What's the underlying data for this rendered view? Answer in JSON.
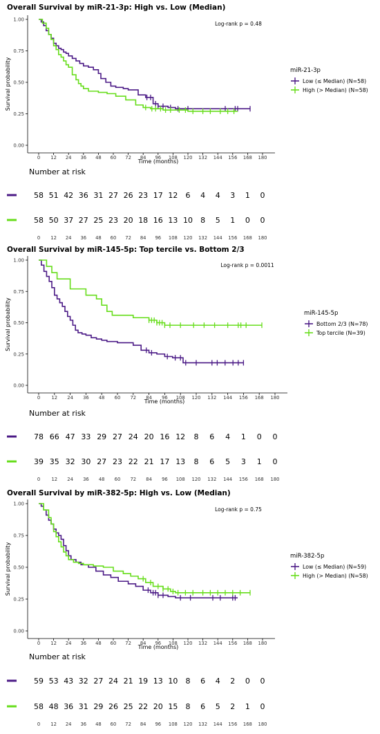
{
  "chart_data": [
    {
      "type": "line",
      "title": "Overall Survival by miR-21-3p: High vs. Low (Median)",
      "xlabel": "Time (months)",
      "ylabel": "Survival probability",
      "xlim": [
        0,
        180
      ],
      "ylim": [
        0,
        1
      ],
      "x_ticks": [
        "0",
        "12",
        "24",
        "36",
        "48",
        "60",
        "72",
        "84",
        "96",
        "108",
        "120",
        "132",
        "144",
        "156",
        "168",
        "180"
      ],
      "y_ticks": [
        "0.00",
        "0.25",
        "0.50",
        "0.75",
        "1.00"
      ],
      "annotation": "Log-rank p = 0.48",
      "legend_title": "miR-21-3p",
      "legend_position": "right",
      "series": [
        {
          "name": "Low (≤ Median) (N=58)",
          "color": "#4b1a86",
          "x": [
            0,
            2,
            4,
            6,
            8,
            10,
            12,
            14,
            16,
            18,
            20,
            22,
            24,
            27,
            30,
            33,
            36,
            40,
            44,
            48,
            50,
            54,
            58,
            62,
            68,
            72,
            80,
            86,
            92,
            96,
            104,
            110,
            170
          ],
          "y": [
            1.0,
            0.98,
            0.95,
            0.91,
            0.88,
            0.85,
            0.81,
            0.79,
            0.77,
            0.76,
            0.74,
            0.73,
            0.71,
            0.69,
            0.67,
            0.65,
            0.63,
            0.62,
            0.6,
            0.57,
            0.53,
            0.5,
            0.47,
            0.46,
            0.45,
            0.44,
            0.4,
            0.38,
            0.33,
            0.31,
            0.3,
            0.29,
            0.29
          ],
          "censors_x": [
            87,
            90,
            94,
            96,
            100,
            106,
            112,
            120,
            150,
            158,
            160,
            170
          ]
        },
        {
          "name": "High (> Median) (N=58)",
          "color": "#66dd1a",
          "x": [
            0,
            3,
            6,
            8,
            10,
            12,
            14,
            16,
            18,
            20,
            22,
            24,
            27,
            30,
            32,
            34,
            36,
            40,
            48,
            55,
            62,
            70,
            78,
            84,
            90,
            100,
            110,
            120,
            160
          ],
          "y": [
            1.0,
            0.97,
            0.93,
            0.88,
            0.84,
            0.79,
            0.76,
            0.72,
            0.7,
            0.67,
            0.64,
            0.62,
            0.56,
            0.52,
            0.49,
            0.47,
            0.45,
            0.43,
            0.42,
            0.41,
            0.39,
            0.36,
            0.32,
            0.3,
            0.29,
            0.28,
            0.28,
            0.27,
            0.27
          ],
          "censors_x": [
            86,
            91,
            94,
            98,
            102,
            106,
            113,
            118,
            124,
            132,
            138,
            146,
            152,
            157
          ]
        }
      ],
      "risk_table": {
        "title": "Number at risk",
        "times": [
          "0",
          "12",
          "24",
          "36",
          "48",
          "60",
          "72",
          "84",
          "96",
          "108",
          "120",
          "132",
          "144",
          "156",
          "168",
          "180"
        ],
        "rows": [
          {
            "color": "#4b1a86",
            "values": [
              "58",
              "51",
              "42",
              "36",
              "31",
              "27",
              "26",
              "23",
              "17",
              "12",
              "6",
              "4",
              "4",
              "3",
              "1",
              "0"
            ]
          },
          {
            "color": "#66dd1a",
            "values": [
              "58",
              "50",
              "37",
              "27",
              "25",
              "23",
              "20",
              "18",
              "16",
              "13",
              "10",
              "8",
              "5",
              "1",
              "0",
              "0"
            ]
          }
        ]
      }
    },
    {
      "type": "line",
      "title": "Overall Survival by miR-145-5p: Top tercile vs. Bottom 2/3",
      "xlabel": "Time (months)",
      "ylabel": "Survival probability",
      "xlim": [
        0,
        180
      ],
      "ylim": [
        0,
        1
      ],
      "x_ticks": [
        "0",
        "12",
        "24",
        "36",
        "48",
        "60",
        "72",
        "84",
        "96",
        "108",
        "120",
        "132",
        "144",
        "156",
        "168",
        "180"
      ],
      "y_ticks": [
        "0.00",
        "0.25",
        "0.50",
        "0.75",
        "1.00"
      ],
      "annotation": "Log-rank p = 0.0011",
      "legend_title": "miR-145-5p",
      "legend_position": "right",
      "series": [
        {
          "name": "Bottom 2/3 (N=78)",
          "color": "#4b1a86",
          "x": [
            0,
            2,
            4,
            6,
            8,
            10,
            12,
            14,
            16,
            18,
            20,
            22,
            24,
            26,
            28,
            30,
            33,
            36,
            40,
            44,
            48,
            52,
            56,
            60,
            66,
            72,
            78,
            84,
            90,
            96,
            102,
            110,
            156
          ],
          "y": [
            1.0,
            0.96,
            0.91,
            0.87,
            0.83,
            0.78,
            0.72,
            0.69,
            0.66,
            0.63,
            0.59,
            0.55,
            0.52,
            0.48,
            0.44,
            0.42,
            0.41,
            0.4,
            0.38,
            0.37,
            0.36,
            0.35,
            0.35,
            0.34,
            0.34,
            0.32,
            0.28,
            0.26,
            0.25,
            0.23,
            0.22,
            0.18,
            0.18
          ],
          "censors_x": [
            82,
            86,
            98,
            104,
            108,
            112,
            120,
            132,
            136,
            142,
            148,
            152,
            156
          ]
        },
        {
          "name": "Top tercile (N=39)",
          "color": "#66dd1a",
          "x": [
            0,
            6,
            10,
            14,
            24,
            36,
            44,
            48,
            52,
            56,
            62,
            72,
            84,
            90,
            96,
            170
          ],
          "y": [
            1.0,
            0.95,
            0.9,
            0.85,
            0.77,
            0.72,
            0.69,
            0.64,
            0.59,
            0.56,
            0.56,
            0.54,
            0.52,
            0.5,
            0.48,
            0.48
          ],
          "censors_x": [
            84,
            86,
            88,
            90,
            92,
            94,
            96,
            100,
            108,
            118,
            126,
            134,
            144,
            152,
            154,
            158,
            170
          ]
        }
      ],
      "risk_table": {
        "title": "Number at risk",
        "times": [
          "0",
          "12",
          "24",
          "36",
          "48",
          "60",
          "72",
          "84",
          "96",
          "108",
          "120",
          "132",
          "144",
          "156",
          "168",
          "180"
        ],
        "rows": [
          {
            "color": "#4b1a86",
            "values": [
              "78",
              "66",
              "47",
              "33",
              "29",
              "27",
              "24",
              "20",
              "16",
              "12",
              "8",
              "6",
              "4",
              "1",
              "0",
              "0"
            ]
          },
          {
            "color": "#66dd1a",
            "values": [
              "39",
              "35",
              "32",
              "30",
              "27",
              "23",
              "22",
              "21",
              "17",
              "13",
              "8",
              "6",
              "5",
              "3",
              "1",
              "0"
            ]
          }
        ]
      }
    },
    {
      "type": "line",
      "title": "Overall Survival by miR-382-5p: High vs. Low (Median)",
      "xlabel": "Time (months)",
      "ylabel": "Survival probability",
      "xlim": [
        0,
        180
      ],
      "ylim": [
        0,
        1
      ],
      "x_ticks": [
        "0",
        "12",
        "24",
        "36",
        "48",
        "60",
        "72",
        "84",
        "96",
        "108",
        "120",
        "132",
        "144",
        "156",
        "168",
        "180"
      ],
      "y_ticks": [
        "0.00",
        "0.25",
        "0.50",
        "0.75",
        "1.00"
      ],
      "annotation": "Log-rank p = 0.75",
      "legend_title": "miR-382-5p",
      "legend_position": "right",
      "series": [
        {
          "name": "Low (≤ Median) (N=59)",
          "color": "#4b1a86",
          "x": [
            0,
            2,
            4,
            6,
            8,
            10,
            12,
            14,
            16,
            18,
            20,
            22,
            24,
            26,
            30,
            34,
            40,
            46,
            52,
            58,
            64,
            72,
            78,
            84,
            90,
            96,
            104,
            110,
            160
          ],
          "y": [
            1.0,
            0.98,
            0.95,
            0.91,
            0.87,
            0.84,
            0.8,
            0.77,
            0.75,
            0.72,
            0.67,
            0.63,
            0.59,
            0.56,
            0.54,
            0.52,
            0.5,
            0.47,
            0.44,
            0.42,
            0.39,
            0.37,
            0.35,
            0.32,
            0.3,
            0.28,
            0.27,
            0.26,
            0.26
          ],
          "censors_x": [
            88,
            92,
            94,
            96,
            100,
            114,
            122,
            140,
            146,
            156,
            158
          ]
        },
        {
          "name": "High (> Median) (N=58)",
          "color": "#66dd1a",
          "x": [
            0,
            4,
            8,
            10,
            12,
            14,
            16,
            18,
            20,
            22,
            24,
            28,
            32,
            36,
            44,
            52,
            60,
            68,
            74,
            80,
            86,
            92,
            100,
            106,
            110,
            170
          ],
          "y": [
            1.0,
            0.95,
            0.89,
            0.84,
            0.78,
            0.74,
            0.7,
            0.66,
            0.62,
            0.59,
            0.56,
            0.54,
            0.53,
            0.52,
            0.51,
            0.5,
            0.47,
            0.45,
            0.43,
            0.41,
            0.38,
            0.35,
            0.33,
            0.31,
            0.3,
            0.3
          ],
          "censors_x": [
            84,
            90,
            96,
            100,
            104,
            108,
            112,
            118,
            124,
            132,
            138,
            144,
            150,
            156,
            162,
            170
          ]
        }
      ],
      "risk_table": {
        "title": "Number at risk",
        "times": [
          "0",
          "12",
          "24",
          "36",
          "48",
          "60",
          "72",
          "84",
          "96",
          "108",
          "120",
          "132",
          "144",
          "156",
          "168",
          "180"
        ],
        "rows": [
          {
            "color": "#4b1a86",
            "values": [
              "59",
              "53",
              "43",
              "32",
              "27",
              "24",
              "21",
              "19",
              "13",
              "10",
              "8",
              "6",
              "4",
              "2",
              "0",
              "0"
            ]
          },
          {
            "color": "#66dd1a",
            "values": [
              "58",
              "48",
              "36",
              "31",
              "29",
              "26",
              "25",
              "22",
              "20",
              "15",
              "8",
              "6",
              "5",
              "2",
              "1",
              "0"
            ]
          }
        ]
      }
    }
  ]
}
